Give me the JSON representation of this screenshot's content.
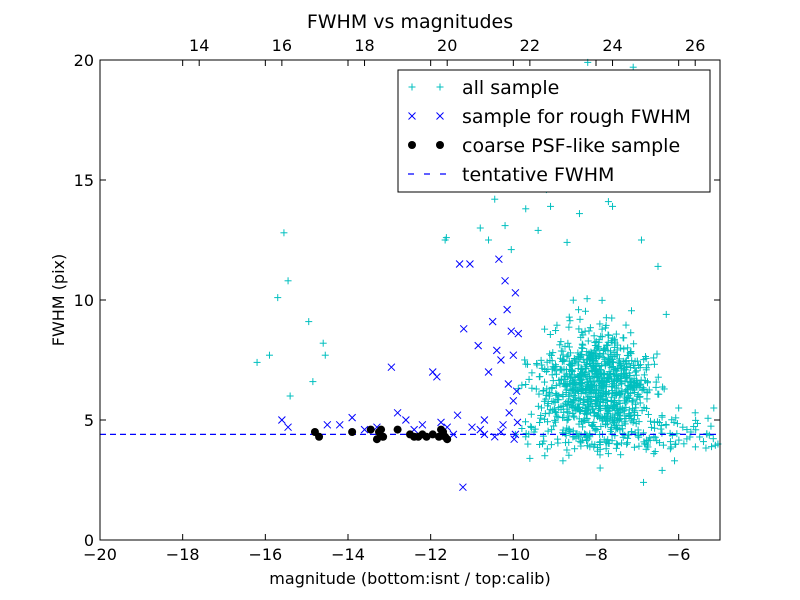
{
  "chart_data": {
    "type": "scatter",
    "title": "FWHM vs magnitudes",
    "xlabel": "magnitude (bottom:isnt / top:calib)",
    "ylabel": "FWHM (pix)",
    "xlim": [
      -20,
      -5
    ],
    "ylim": [
      0,
      20
    ],
    "x_ticks": [
      -20,
      -18,
      -16,
      -14,
      -12,
      -10,
      -8,
      -6
    ],
    "x_tick_labels": [
      "−20",
      "−18",
      "−16",
      "−14",
      "−12",
      "−10",
      "−8",
      "−6"
    ],
    "y_ticks": [
      0,
      5,
      10,
      15,
      20
    ],
    "y_tick_labels": [
      "0",
      "5",
      "10",
      "15",
      "20"
    ],
    "top_axis": {
      "offset": 31.6,
      "ticks": [
        14,
        16,
        18,
        20,
        22,
        24,
        26
      ],
      "tick_labels": [
        "14",
        "16",
        "18",
        "20",
        "22",
        "24",
        "26"
      ]
    },
    "grid": false,
    "legend_position": "top-right",
    "series": [
      {
        "name": "all sample",
        "marker": "plus",
        "color": "#00bfbf",
        "points": [
          [
            -16.2,
            7.4
          ],
          [
            -15.9,
            7.7
          ],
          [
            -15.7,
            10.1
          ],
          [
            -15.55,
            12.8
          ],
          [
            -15.45,
            10.8
          ],
          [
            -15.4,
            6.0
          ],
          [
            -14.95,
            9.1
          ],
          [
            -14.85,
            6.6
          ],
          [
            -14.6,
            8.2
          ],
          [
            -14.55,
            7.7
          ],
          [
            -11.65,
            12.5
          ],
          [
            -11.62,
            12.6
          ],
          [
            -10.8,
            13.0
          ],
          [
            -10.6,
            12.5
          ],
          [
            -10.45,
            14.2
          ],
          [
            -10.2,
            13.1
          ],
          [
            -10.05,
            12.1
          ],
          [
            -9.8,
            15.3
          ],
          [
            -9.7,
            13.8
          ],
          [
            -9.4,
            12.9
          ],
          [
            -9.2,
            14.6
          ],
          [
            -9.1,
            13.9
          ],
          [
            -9.0,
            17.2
          ],
          [
            -8.85,
            15.0
          ],
          [
            -8.7,
            12.4
          ],
          [
            -8.5,
            15.7
          ],
          [
            -8.4,
            13.6
          ],
          [
            -8.3,
            17.3
          ],
          [
            -8.2,
            19.9
          ],
          [
            -8.1,
            15.2
          ],
          [
            -7.9,
            18.4
          ],
          [
            -7.7,
            14.1
          ],
          [
            -7.6,
            13.9
          ],
          [
            -7.4,
            16.2
          ],
          [
            -7.25,
            17.5
          ],
          [
            -7.1,
            19.7
          ],
          [
            -6.9,
            12.5
          ],
          [
            -6.85,
            16.8
          ],
          [
            -6.5,
            11.4
          ],
          [
            -6.3,
            9.4
          ],
          [
            -6.0,
            5.5
          ],
          [
            -5.8,
            4.6
          ],
          [
            -5.6,
            5.3
          ],
          [
            -5.4,
            4.1
          ],
          [
            -5.15,
            5.5
          ],
          [
            -5.05,
            4.0
          ],
          [
            -9.6,
            3.4
          ],
          [
            -8.8,
            3.3
          ],
          [
            -7.9,
            3.0
          ],
          [
            -7.7,
            3.6
          ],
          [
            -6.6,
            3.6
          ],
          [
            -6.4,
            2.9
          ],
          [
            -6.85,
            2.4
          ],
          [
            -9.95,
            4.4
          ],
          [
            -9.7,
            4.3
          ],
          [
            -9.5,
            4.5
          ],
          [
            -6.2,
            3.8
          ],
          [
            -6.1,
            3.3
          ],
          [
            -6.6,
            4.3
          ],
          [
            -5.9,
            4.7
          ]
        ]
      },
      {
        "name": "sample for rough FWHM",
        "marker": "x",
        "color": "#0000ff",
        "points": [
          [
            -15.6,
            5.0
          ],
          [
            -15.45,
            4.7
          ],
          [
            -14.5,
            4.8
          ],
          [
            -14.2,
            4.8
          ],
          [
            -13.9,
            5.1
          ],
          [
            -13.6,
            4.6
          ],
          [
            -13.3,
            4.7
          ],
          [
            -12.95,
            7.2
          ],
          [
            -12.8,
            5.3
          ],
          [
            -12.6,
            5.0
          ],
          [
            -12.4,
            4.6
          ],
          [
            -12.2,
            4.8
          ],
          [
            -11.95,
            7.0
          ],
          [
            -11.85,
            6.8
          ],
          [
            -11.75,
            4.9
          ],
          [
            -11.6,
            4.7
          ],
          [
            -11.45,
            4.4
          ],
          [
            -11.35,
            5.2
          ],
          [
            -11.3,
            11.5
          ],
          [
            -11.22,
            2.2
          ],
          [
            -11.2,
            8.8
          ],
          [
            -11.05,
            11.5
          ],
          [
            -11.0,
            4.7
          ],
          [
            -10.85,
            8.1
          ],
          [
            -10.8,
            4.6
          ],
          [
            -10.7,
            5.0
          ],
          [
            -10.6,
            7.0
          ],
          [
            -10.5,
            9.1
          ],
          [
            -10.45,
            4.3
          ],
          [
            -10.4,
            7.9
          ],
          [
            -10.35,
            11.7
          ],
          [
            -10.3,
            7.5
          ],
          [
            -10.25,
            4.8
          ],
          [
            -10.2,
            10.8
          ],
          [
            -10.15,
            9.6
          ],
          [
            -10.12,
            6.5
          ],
          [
            -10.1,
            5.3
          ],
          [
            -10.05,
            8.7
          ],
          [
            -10.0,
            7.7
          ],
          [
            -9.98,
            4.2
          ],
          [
            -9.95,
            10.3
          ],
          [
            -9.92,
            6.2
          ],
          [
            -9.9,
            4.9
          ],
          [
            -9.88,
            8.6
          ],
          [
            -10.7,
            4.4
          ],
          [
            -10.3,
            4.5
          ],
          [
            -10.0,
            5.8
          ],
          [
            -9.95,
            4.4
          ]
        ]
      },
      {
        "name": "coarse PSF-like sample",
        "marker": "circle",
        "color": "#000000",
        "points": [
          [
            -14.8,
            4.5
          ],
          [
            -14.7,
            4.3
          ],
          [
            -13.9,
            4.5
          ],
          [
            -13.45,
            4.6
          ],
          [
            -13.3,
            4.2
          ],
          [
            -13.25,
            4.5
          ],
          [
            -13.2,
            4.6
          ],
          [
            -13.15,
            4.3
          ],
          [
            -12.8,
            4.6
          ],
          [
            -12.5,
            4.4
          ],
          [
            -12.4,
            4.3
          ],
          [
            -12.3,
            4.3
          ],
          [
            -12.2,
            4.4
          ],
          [
            -12.1,
            4.3
          ],
          [
            -11.95,
            4.4
          ],
          [
            -11.8,
            4.3
          ],
          [
            -11.75,
            4.6
          ],
          [
            -11.7,
            4.5
          ],
          [
            -11.65,
            4.3
          ],
          [
            -11.6,
            4.2
          ]
        ]
      },
      {
        "name": "tentative FWHM",
        "marker": "dashed-line",
        "color": "#0000ff",
        "y": 4.4
      }
    ],
    "generated_cloud": {
      "series": "all sample",
      "count": 900,
      "center": [
        -8.0,
        6.5
      ],
      "spread": [
        0.9,
        1.9
      ]
    }
  }
}
